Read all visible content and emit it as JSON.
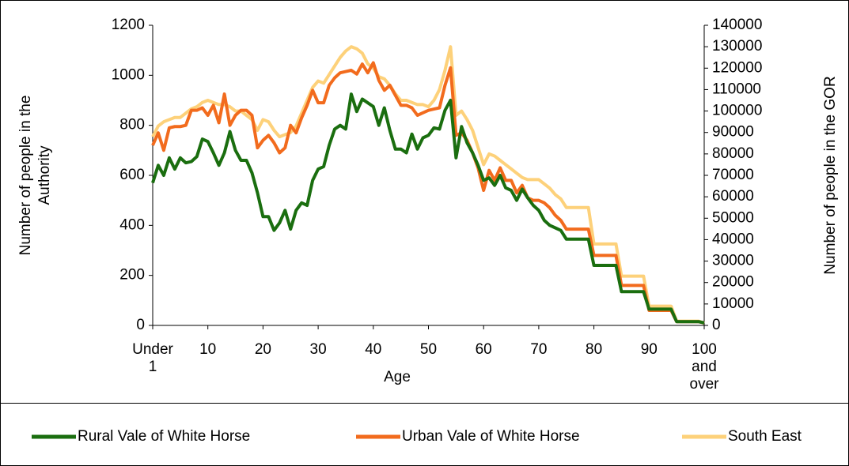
{
  "chart_data": {
    "type": "line",
    "xlabel": "Age",
    "ylabel": "Number of people in the Authority",
    "y2label": "Number of people in the GOR",
    "categories": [
      "Under 1",
      null,
      null,
      null,
      null,
      null,
      null,
      null,
      null,
      null,
      "10",
      null,
      null,
      null,
      null,
      null,
      null,
      null,
      null,
      null,
      "20",
      null,
      null,
      null,
      null,
      null,
      null,
      null,
      null,
      null,
      "30",
      null,
      null,
      null,
      null,
      null,
      null,
      null,
      null,
      null,
      "40",
      null,
      null,
      null,
      null,
      null,
      null,
      null,
      null,
      null,
      "50",
      null,
      null,
      null,
      null,
      null,
      null,
      null,
      null,
      null,
      "60",
      null,
      null,
      null,
      null,
      null,
      null,
      null,
      null,
      null,
      "70",
      null,
      null,
      null,
      null,
      null,
      null,
      null,
      null,
      null,
      "80",
      null,
      null,
      null,
      null,
      null,
      null,
      null,
      null,
      null,
      "90",
      null,
      null,
      null,
      null,
      null,
      null,
      null,
      null,
      null,
      "100 and over"
    ],
    "series": [
      {
        "name": "Rural Vale of White Horse",
        "color": "#1a6e0f",
        "axis": "y",
        "values": [
          570,
          640,
          600,
          670,
          625,
          670,
          650,
          655,
          675,
          745,
          735,
          690,
          640,
          690,
          775,
          700,
          660,
          660,
          610,
          530,
          435,
          435,
          380,
          410,
          460,
          385,
          460,
          490,
          480,
          580,
          625,
          635,
          720,
          785,
          800,
          785,
          925,
          855,
          905,
          890,
          875,
          800,
          870,
          780,
          705,
          705,
          690,
          765,
          705,
          750,
          760,
          790,
          785,
          860,
          900,
          670,
          795,
          730,
          690,
          640,
          580,
          590,
          560,
          600,
          550,
          540,
          500,
          545,
          510,
          480,
          460,
          420,
          400,
          390,
          380,
          345,
          345,
          345,
          345,
          345,
          240,
          240,
          240,
          240,
          240,
          135,
          135,
          135,
          135,
          135,
          65,
          65,
          65,
          65,
          65,
          15,
          15,
          15,
          15,
          15,
          10
        ]
      },
      {
        "name": "Urban Vale of White Horse",
        "color": "#f26b1d",
        "axis": "y",
        "values": [
          720,
          770,
          700,
          790,
          795,
          795,
          800,
          860,
          860,
          870,
          840,
          880,
          810,
          925,
          800,
          840,
          860,
          860,
          840,
          710,
          740,
          760,
          730,
          690,
          710,
          800,
          770,
          830,
          880,
          940,
          890,
          890,
          960,
          990,
          1010,
          1015,
          1020,
          1005,
          1045,
          1010,
          1050,
          980,
          940,
          960,
          920,
          880,
          880,
          870,
          840,
          850,
          860,
          865,
          870,
          960,
          1030,
          760,
          770,
          740,
          690,
          630,
          540,
          620,
          580,
          630,
          580,
          580,
          530,
          560,
          510,
          500,
          500,
          490,
          470,
          440,
          420,
          385,
          385,
          385,
          385,
          385,
          280,
          280,
          280,
          280,
          280,
          160,
          160,
          160,
          160,
          160,
          60,
          60,
          60,
          60,
          60,
          15,
          15,
          15,
          15,
          15,
          10
        ]
      },
      {
        "name": "South East",
        "color": "#fdd17a",
        "axis": "y2",
        "values": [
          88000,
          93000,
          95000,
          96000,
          97000,
          97000,
          99000,
          101000,
          102000,
          104000,
          105000,
          104000,
          103000,
          103000,
          102000,
          100000,
          100000,
          98000,
          96000,
          91000,
          96000,
          95000,
          91000,
          88000,
          89000,
          90000,
          93000,
          99000,
          105000,
          111000,
          114000,
          113000,
          117000,
          121000,
          125000,
          128000,
          130000,
          129000,
          127000,
          122000,
          120000,
          116000,
          115000,
          112000,
          108000,
          105000,
          105000,
          104000,
          103000,
          103000,
          102000,
          105000,
          110000,
          119000,
          130000,
          98000,
          100000,
          96000,
          91000,
          83000,
          75000,
          80000,
          79000,
          77000,
          75000,
          73000,
          71000,
          69000,
          68000,
          68000,
          68000,
          66000,
          64000,
          61000,
          59000,
          55000,
          55000,
          55000,
          55000,
          55000,
          38000,
          38000,
          38000,
          38000,
          38000,
          23000,
          23000,
          23000,
          23000,
          23000,
          9000,
          9000,
          9000,
          9000,
          9000,
          2000,
          2000,
          2000,
          2000,
          2000,
          1000
        ]
      }
    ],
    "ylim": [
      0,
      1200
    ],
    "yticks": [
      0,
      200,
      400,
      600,
      800,
      1000,
      1200
    ],
    "y2lim": [
      0,
      140000
    ],
    "y2ticks": [
      0,
      10000,
      20000,
      30000,
      40000,
      50000,
      60000,
      70000,
      80000,
      90000,
      100000,
      110000,
      120000,
      130000,
      140000
    ],
    "legend": "bottom",
    "grid": false
  }
}
